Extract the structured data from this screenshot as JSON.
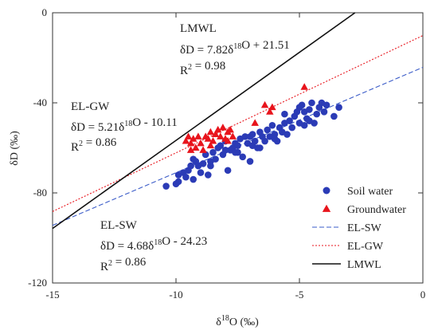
{
  "chart_data": {
    "type": "scatter",
    "xlabel": "δ18O (‰)",
    "ylabel": "δD (‰)",
    "xlim": [
      -15,
      0
    ],
    "ylim": [
      -120,
      0
    ],
    "xticks": [
      -15,
      -10,
      -5,
      0
    ],
    "yticks": [
      -120,
      -80,
      -40,
      0
    ],
    "grid": false,
    "legend_position": "bottom-right",
    "series": [
      {
        "name": "Soil water",
        "kind": "points",
        "marker": "circle",
        "color": "#2b3bb6",
        "points": [
          [
            -10.4,
            -77
          ],
          [
            -10.0,
            -76
          ],
          [
            -9.9,
            -72
          ],
          [
            -9.7,
            -71
          ],
          [
            -9.6,
            -73
          ],
          [
            -9.5,
            -70
          ],
          [
            -9.4,
            -68
          ],
          [
            -9.3,
            -74
          ],
          [
            -9.3,
            -65
          ],
          [
            -9.2,
            -66
          ],
          [
            -9.0,
            -71
          ],
          [
            -8.9,
            -67
          ],
          [
            -8.8,
            -63
          ],
          [
            -8.6,
            -68
          ],
          [
            -8.5,
            -62
          ],
          [
            -8.4,
            -65
          ],
          [
            -8.3,
            -60
          ],
          [
            -8.2,
            -59
          ],
          [
            -8.1,
            -63
          ],
          [
            -8.0,
            -57
          ],
          [
            -7.9,
            -70
          ],
          [
            -7.8,
            -61
          ],
          [
            -7.7,
            -60
          ],
          [
            -7.6,
            -58
          ],
          [
            -7.5,
            -62
          ],
          [
            -7.4,
            -56
          ],
          [
            -7.3,
            -64
          ],
          [
            -7.2,
            -55
          ],
          [
            -7.1,
            -58
          ],
          [
            -7.0,
            -55
          ],
          [
            -6.9,
            -59
          ],
          [
            -6.8,
            -57
          ],
          [
            -6.7,
            -60
          ],
          [
            -6.6,
            -53
          ],
          [
            -6.5,
            -55
          ],
          [
            -6.4,
            -57
          ],
          [
            -6.3,
            -52
          ],
          [
            -6.2,
            -55
          ],
          [
            -6.1,
            -50
          ],
          [
            -6.0,
            -54
          ],
          [
            -5.9,
            -57
          ],
          [
            -5.8,
            -51
          ],
          [
            -5.7,
            -53
          ],
          [
            -5.6,
            -49
          ],
          [
            -5.5,
            -54
          ],
          [
            -5.4,
            -48
          ],
          [
            -5.3,
            -51
          ],
          [
            -5.2,
            -46
          ],
          [
            -5.1,
            -44
          ],
          [
            -5.0,
            -49
          ],
          [
            -4.9,
            -41
          ],
          [
            -4.8,
            -44
          ],
          [
            -4.7,
            -47
          ],
          [
            -4.6,
            -43
          ],
          [
            -4.5,
            -40
          ],
          [
            -4.4,
            -49
          ],
          [
            -4.3,
            -45
          ],
          [
            -4.2,
            -42
          ],
          [
            -4.1,
            -40
          ],
          [
            -4.0,
            -44
          ],
          [
            -3.9,
            -41
          ],
          [
            -3.6,
            -46
          ],
          [
            -7.0,
            -66
          ],
          [
            -8.7,
            -72
          ],
          [
            -6.6,
            -60
          ],
          [
            -5.0,
            -42
          ],
          [
            -4.8,
            -50
          ],
          [
            -7.5,
            -59
          ],
          [
            -9.1,
            -68
          ],
          [
            -8.0,
            -61
          ],
          [
            -6.0,
            -56
          ],
          [
            -5.6,
            -45
          ],
          [
            -4.6,
            -48
          ],
          [
            -3.4,
            -42
          ],
          [
            -6.9,
            -54
          ],
          [
            -8.6,
            -66
          ],
          [
            -9.9,
            -75
          ],
          [
            -7.6,
            -62
          ]
        ]
      },
      {
        "name": "Groundwater",
        "kind": "points",
        "marker": "triangle",
        "color": "#e8141c",
        "points": [
          [
            -9.6,
            -57
          ],
          [
            -9.5,
            -55
          ],
          [
            -9.4,
            -61
          ],
          [
            -9.3,
            -56
          ],
          [
            -9.2,
            -60
          ],
          [
            -9.1,
            -55
          ],
          [
            -9.0,
            -58
          ],
          [
            -8.9,
            -61
          ],
          [
            -8.8,
            -55
          ],
          [
            -8.7,
            -56
          ],
          [
            -8.6,
            -53
          ],
          [
            -8.5,
            -57
          ],
          [
            -8.4,
            -54
          ],
          [
            -8.3,
            -52
          ],
          [
            -8.2,
            -55
          ],
          [
            -8.1,
            -51
          ],
          [
            -8.0,
            -56
          ],
          [
            -7.9,
            -53
          ],
          [
            -7.8,
            -52
          ],
          [
            -7.7,
            -55
          ],
          [
            -6.8,
            -49
          ],
          [
            -6.4,
            -41
          ],
          [
            -6.2,
            -44
          ],
          [
            -6.1,
            -42
          ],
          [
            -4.8,
            -33
          ],
          [
            -9.4,
            -58
          ],
          [
            -8.6,
            -59
          ],
          [
            -7.9,
            -57
          ]
        ]
      },
      {
        "name": "EL-SW",
        "kind": "line",
        "style": "dashed",
        "color": "#3a5bc8",
        "slope": 4.68,
        "intercept": -24.23
      },
      {
        "name": "EL-GW",
        "kind": "line",
        "style": "dotted",
        "color": "#e8141c",
        "slope": 5.21,
        "intercept": -10.11
      },
      {
        "name": "LMWL",
        "kind": "line",
        "style": "solid",
        "color": "#111111",
        "slope": 7.82,
        "intercept": 21.51
      }
    ],
    "annotations": [
      {
        "id": "lmwl",
        "title": "LMWL",
        "equation": "δD = 7.82δ18O + 21.51",
        "r2": "R2 = 0.98"
      },
      {
        "id": "elgw",
        "title": "EL-GW",
        "equation": "δD = 5.21δ18O - 10.11",
        "r2": "R2 = 0.86"
      },
      {
        "id": "elsw",
        "title": "EL-SW",
        "equation": "δD = 4.68δ18O - 24.23",
        "r2": "R2 = 0.86"
      }
    ]
  }
}
